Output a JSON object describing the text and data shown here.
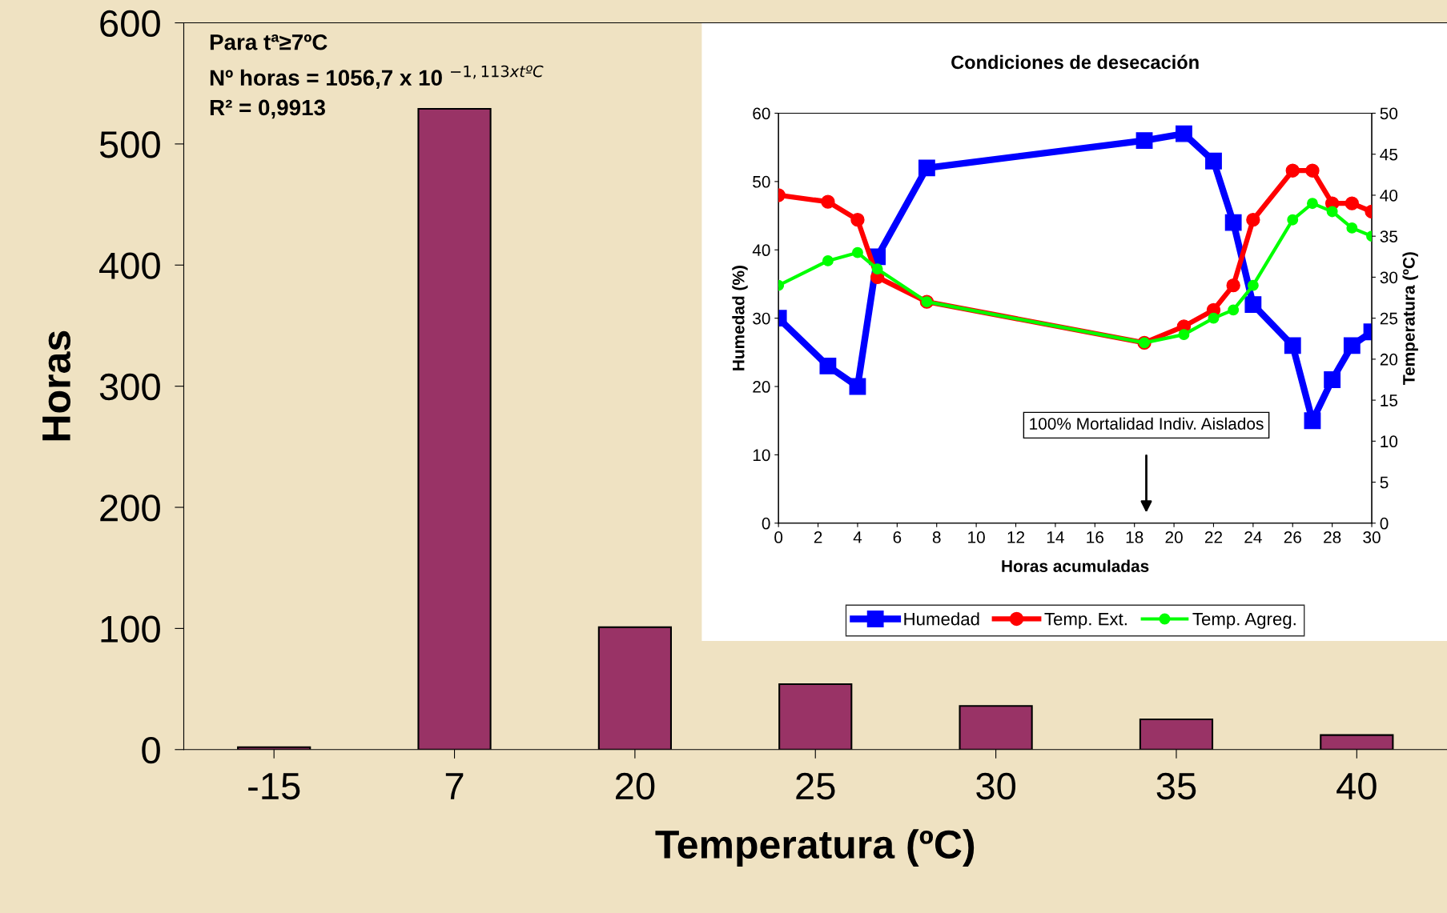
{
  "chart_data": [
    {
      "type": "bar",
      "xlabel": "Temperatura (ºC)",
      "ylabel": "Horas",
      "categories": [
        "-15",
        "7",
        "20",
        "25",
        "30",
        "35",
        "40"
      ],
      "values": [
        2,
        529,
        101,
        54,
        36,
        25,
        12
      ],
      "color": "#993366",
      "ylim": [
        0,
        600
      ],
      "yticks": [
        0,
        100,
        200,
        300,
        400,
        500,
        600
      ],
      "grid": false,
      "annotations": [
        "Para tª≥7ºC",
        "Nº horas = 1056,7 x 10 $^{−1,113xtºC}$",
        "R² = 0,9913"
      ]
    },
    {
      "type": "line",
      "title": "Condiciones de desecación",
      "xlabel": "Horas acumuladas",
      "ylabel": "Humedad (%)",
      "y2label": "Temperatura (ºC)",
      "x": [
        0,
        2.5,
        4,
        5,
        7.5,
        18.5,
        20.5,
        22,
        23,
        24,
        26,
        27,
        28,
        29,
        30
      ],
      "xlim": [
        0,
        30
      ],
      "xticks": [
        0,
        2,
        4,
        6,
        8,
        10,
        12,
        14,
        16,
        18,
        20,
        22,
        24,
        26,
        28,
        30
      ],
      "ylim": [
        0,
        60
      ],
      "yticks": [
        0,
        10,
        20,
        30,
        40,
        50,
        60
      ],
      "y2lim": [
        0,
        50
      ],
      "y2ticks": [
        0,
        5,
        10,
        15,
        20,
        25,
        30,
        35,
        40,
        45,
        50
      ],
      "grid": false,
      "legend": "bottom",
      "series": [
        {
          "name": "Humedad",
          "color": "#0000ff",
          "marker": "square",
          "values": [
            30,
            23,
            20,
            39,
            52,
            56,
            57,
            53,
            44,
            32,
            26,
            15,
            21,
            26,
            28
          ]
        },
        {
          "name": "Temp. Ext.",
          "color": "#ff0000",
          "marker": "circle",
          "axis": "y2",
          "values": [
            40,
            39.2,
            37,
            30,
            27,
            22,
            24,
            26,
            29,
            37,
            43,
            43,
            39,
            39,
            38
          ]
        },
        {
          "name": "Temp. Agreg.",
          "color": "#00ff00",
          "marker": "circle",
          "axis": "y2",
          "values": [
            29,
            32,
            33,
            31,
            27,
            22,
            23,
            25,
            26,
            29,
            37,
            39,
            38,
            36,
            35
          ]
        }
      ],
      "annotations": [
        "100% Mortalidad Indiv. Aislados"
      ]
    }
  ]
}
